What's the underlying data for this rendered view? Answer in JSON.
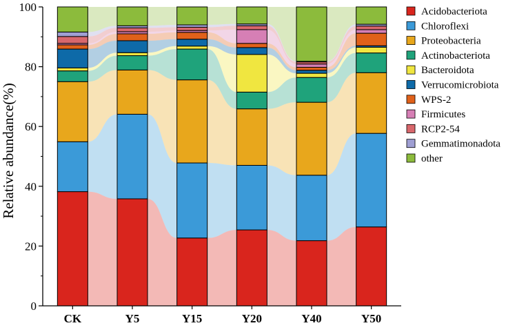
{
  "chart_data": {
    "type": "bar",
    "stacked": true,
    "title": "",
    "xlabel": "",
    "ylabel": "Relative abundance(%)",
    "ylim": [
      0,
      100
    ],
    "yticks": [
      0,
      20,
      40,
      60,
      80,
      100
    ],
    "legend_position": "right",
    "categories": [
      "CK",
      "Y5",
      "Y15",
      "Y20",
      "Y40",
      "Y50"
    ],
    "series": [
      {
        "name": "Acidobacteriota",
        "color": "#d9251d",
        "values": [
          38.2,
          35.8,
          22.7,
          25.4,
          21.8,
          26.4
        ]
      },
      {
        "name": "Chloroflexi",
        "color": "#3b9ad8",
        "values": [
          16.7,
          28.3,
          25.1,
          21.6,
          21.9,
          31.3
        ]
      },
      {
        "name": "Proteobacteria",
        "color": "#e8a71c",
        "values": [
          20.1,
          14.8,
          27.8,
          18.9,
          24.4,
          20.3
        ]
      },
      {
        "name": "Actinobacteriota",
        "color": "#1fa37b",
        "values": [
          3.6,
          4.8,
          10.3,
          5.6,
          8.3,
          6.6
        ]
      },
      {
        "name": "Bacteroidota",
        "color": "#f0e640",
        "values": [
          1.0,
          1.0,
          1.0,
          12.6,
          1.4,
          1.9
        ]
      },
      {
        "name": "Verrucomicrobiota",
        "color": "#0e6aa8",
        "values": [
          6.3,
          4.0,
          2.3,
          2.3,
          1.0,
          0.5
        ]
      },
      {
        "name": "WPS-2",
        "color": "#e0611a",
        "values": [
          1.4,
          2.3,
          2.3,
          1.4,
          1.0,
          4.2
        ]
      },
      {
        "name": "Firmicutes",
        "color": "#d67fb5",
        "values": [
          0.5,
          0.7,
          0.6,
          4.6,
          1.1,
          1.2
        ]
      },
      {
        "name": "RCP2-54",
        "color": "#d8676c",
        "values": [
          2.3,
          1.3,
          1.1,
          1.3,
          0.7,
          1.2
        ]
      },
      {
        "name": "Gemmatimonadota",
        "color": "#9f9fd3",
        "values": [
          1.5,
          0.7,
          0.8,
          0.6,
          0.2,
          0.6
        ]
      },
      {
        "name": "other",
        "color": "#8cbb3c",
        "values": [
          8.4,
          6.3,
          6.0,
          5.7,
          18.2,
          5.8
        ]
      }
    ]
  }
}
